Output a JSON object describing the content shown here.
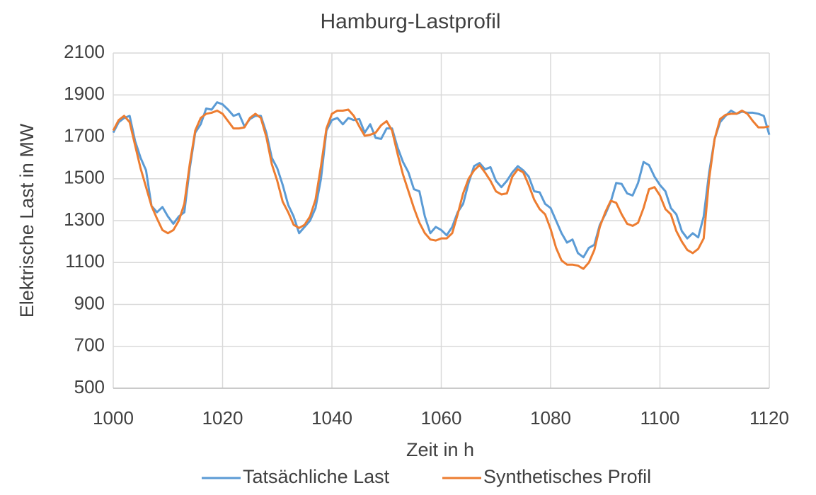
{
  "chart_data": {
    "type": "line",
    "title": "Hamburg-Lastprofil",
    "x_label": "Zeit in h",
    "y_label": "Elektrische Last in MW",
    "x": [
      1000,
      1001,
      1002,
      1003,
      1004,
      1005,
      1006,
      1007,
      1008,
      1009,
      1010,
      1011,
      1012,
      1013,
      1014,
      1015,
      1016,
      1017,
      1018,
      1019,
      1020,
      1021,
      1022,
      1023,
      1024,
      1025,
      1026,
      1027,
      1028,
      1029,
      1030,
      1031,
      1032,
      1033,
      1034,
      1035,
      1036,
      1037,
      1038,
      1039,
      1040,
      1041,
      1042,
      1043,
      1044,
      1045,
      1046,
      1047,
      1048,
      1049,
      1050,
      1051,
      1052,
      1053,
      1054,
      1055,
      1056,
      1057,
      1058,
      1059,
      1060,
      1061,
      1062,
      1063,
      1064,
      1065,
      1066,
      1067,
      1068,
      1069,
      1070,
      1071,
      1072,
      1073,
      1074,
      1075,
      1076,
      1077,
      1078,
      1079,
      1080,
      1081,
      1082,
      1083,
      1084,
      1085,
      1086,
      1087,
      1088,
      1089,
      1090,
      1091,
      1092,
      1093,
      1094,
      1095,
      1096,
      1097,
      1098,
      1099,
      1100,
      1101,
      1102,
      1103,
      1104,
      1105,
      1106,
      1107,
      1108,
      1109,
      1110,
      1111,
      1112,
      1113,
      1114,
      1115,
      1116,
      1117,
      1118,
      1119,
      1120
    ],
    "series": [
      {
        "name": "Tatsächliche Last",
        "color": "#5b9bd5",
        "values": [
          1720,
          1770,
          1790,
          1800,
          1680,
          1600,
          1540,
          1370,
          1340,
          1365,
          1320,
          1285,
          1320,
          1340,
          1550,
          1720,
          1760,
          1835,
          1830,
          1865,
          1855,
          1830,
          1800,
          1810,
          1750,
          1785,
          1800,
          1800,
          1720,
          1600,
          1550,
          1470,
          1375,
          1320,
          1240,
          1270,
          1300,
          1360,
          1500,
          1730,
          1780,
          1790,
          1760,
          1790,
          1780,
          1785,
          1720,
          1760,
          1695,
          1690,
          1740,
          1740,
          1650,
          1580,
          1530,
          1450,
          1440,
          1320,
          1240,
          1270,
          1255,
          1230,
          1270,
          1340,
          1380,
          1480,
          1560,
          1575,
          1545,
          1555,
          1490,
          1460,
          1490,
          1530,
          1560,
          1540,
          1510,
          1440,
          1435,
          1380,
          1360,
          1300,
          1240,
          1195,
          1210,
          1145,
          1125,
          1170,
          1185,
          1280,
          1330,
          1390,
          1480,
          1475,
          1430,
          1420,
          1480,
          1580,
          1565,
          1510,
          1470,
          1440,
          1360,
          1330,
          1250,
          1215,
          1240,
          1220,
          1320,
          1530,
          1690,
          1770,
          1800,
          1825,
          1810,
          1820,
          1815,
          1815,
          1810,
          1800,
          1710
        ]
      },
      {
        "name": "Synthetisches Profil",
        "color": "#ed7d31",
        "values": [
          1730,
          1780,
          1800,
          1770,
          1660,
          1550,
          1460,
          1370,
          1310,
          1255,
          1240,
          1255,
          1300,
          1380,
          1570,
          1730,
          1790,
          1810,
          1815,
          1825,
          1810,
          1775,
          1740,
          1740,
          1745,
          1790,
          1810,
          1790,
          1700,
          1570,
          1490,
          1390,
          1340,
          1280,
          1265,
          1280,
          1320,
          1400,
          1560,
          1740,
          1810,
          1825,
          1825,
          1830,
          1800,
          1750,
          1705,
          1710,
          1720,
          1755,
          1775,
          1730,
          1620,
          1520,
          1440,
          1360,
          1290,
          1240,
          1210,
          1205,
          1215,
          1215,
          1240,
          1330,
          1430,
          1500,
          1540,
          1565,
          1530,
          1490,
          1440,
          1425,
          1430,
          1510,
          1545,
          1530,
          1470,
          1400,
          1355,
          1330,
          1260,
          1170,
          1110,
          1090,
          1090,
          1085,
          1070,
          1100,
          1160,
          1270,
          1340,
          1395,
          1385,
          1330,
          1285,
          1275,
          1290,
          1360,
          1450,
          1460,
          1420,
          1355,
          1330,
          1250,
          1200,
          1160,
          1145,
          1165,
          1215,
          1500,
          1690,
          1785,
          1805,
          1810,
          1810,
          1825,
          1810,
          1775,
          1745,
          1745,
          1750
        ]
      }
    ],
    "xlim": [
      1000,
      1120
    ],
    "xticks": [
      1000,
      1020,
      1040,
      1060,
      1080,
      1100,
      1120
    ],
    "ylim": [
      500,
      2100
    ],
    "yticks": [
      500,
      700,
      900,
      1100,
      1300,
      1500,
      1700,
      1900,
      2100
    ],
    "grid": true,
    "legend": "bottom"
  }
}
